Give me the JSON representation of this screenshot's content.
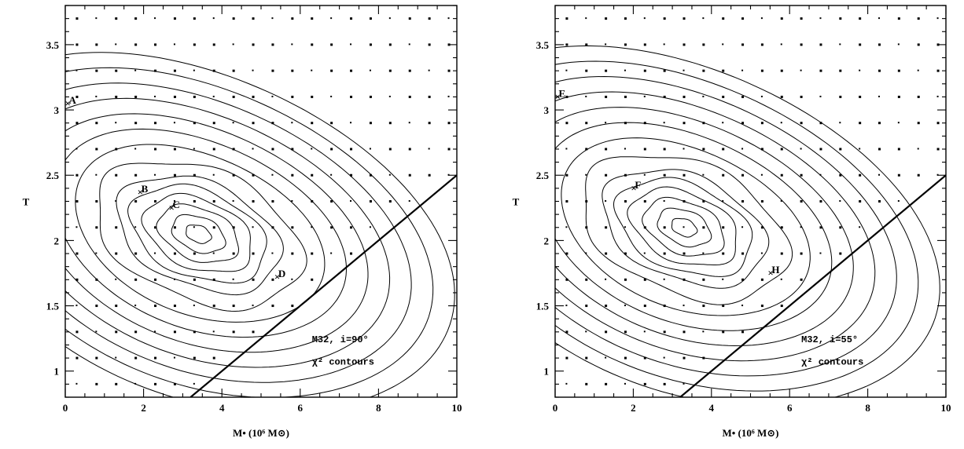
{
  "chart_data": [
    {
      "type": "contour",
      "xlim": [
        0,
        10
      ],
      "ylim": [
        0.8,
        3.8
      ],
      "xticks": [
        "0",
        "2",
        "4",
        "6",
        "8",
        "10"
      ],
      "yticks": [
        "1",
        "1.5",
        "2",
        "2.5",
        "3",
        "3.5"
      ],
      "xlabel": "M• (10⁶ M⊙)",
      "ylabel": "T",
      "annotation_line1": "M32, i=90°",
      "annotation_line2": "χ² contours",
      "labeled_points": [
        {
          "label": "A",
          "x": 0.05,
          "y": 3.05
        },
        {
          "label": "B",
          "x": 1.9,
          "y": 2.37
        },
        {
          "label": "C",
          "x": 2.7,
          "y": 2.25
        },
        {
          "label": "D",
          "x": 5.4,
          "y": 1.72
        }
      ],
      "minimum": {
        "x": 3.4,
        "y": 2.05
      },
      "boundary_line": {
        "x": [
          3.2,
          10
        ],
        "y": [
          0.8,
          2.5
        ]
      }
    },
    {
      "type": "contour",
      "xlim": [
        0,
        10
      ],
      "ylim": [
        0.8,
        3.8
      ],
      "xticks": [
        "0",
        "2",
        "4",
        "6",
        "8",
        "10"
      ],
      "yticks": [
        "1",
        "1.5",
        "2",
        "2.5",
        "3",
        "3.5"
      ],
      "xlabel": "M• (10⁶ M⊙)",
      "ylabel": "T",
      "annotation_line1": "M32, i=55°",
      "annotation_line2": "χ² contours",
      "labeled_points": [
        {
          "label": "E",
          "x": 0.05,
          "y": 3.1
        },
        {
          "label": "F",
          "x": 2.0,
          "y": 2.4
        },
        {
          "label": "H",
          "x": 5.5,
          "y": 1.75
        }
      ],
      "minimum": {
        "x": 3.3,
        "y": 2.1
      },
      "boundary_line": {
        "x": [
          3.2,
          10
        ],
        "y": [
          0.8,
          2.5
        ]
      }
    }
  ]
}
